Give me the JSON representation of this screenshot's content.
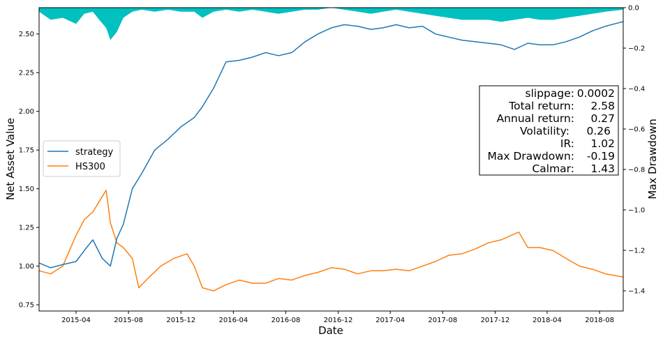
{
  "chart_data": {
    "type": "line",
    "title": "",
    "xlabel": "Date",
    "ylabel": "Net Asset Value",
    "y2label": "Max Drawdown",
    "x_ticks": [
      "2015-04",
      "2015-08",
      "2015-12",
      "2016-04",
      "2016-08",
      "2016-12",
      "2017-04",
      "2017-08",
      "2017-12",
      "2018-04",
      "2018-08"
    ],
    "xlim": [
      "2015-01-05",
      "2018-09-25"
    ],
    "ylim": [
      0.71,
      2.67
    ],
    "y_ticks": [
      "0.75",
      "1.00",
      "1.25",
      "1.50",
      "1.75",
      "2.00",
      "2.25",
      "2.50"
    ],
    "y2lim": [
      -1.5,
      0.0
    ],
    "y2_ticks": [
      "0.0",
      "−0.2",
      "−0.4",
      "−0.6",
      "−0.8",
      "−1.0",
      "−1.2",
      "−1.4"
    ],
    "legend": {
      "position": "center-left",
      "entries": [
        "strategy",
        "HS300"
      ]
    },
    "colors": {
      "strategy": "#1f77b4",
      "HS300": "#ff7f0e",
      "drawdown": "#00c0c0"
    },
    "series": [
      {
        "name": "strategy",
        "x": [
          "2015-01-05",
          "2015-02-01",
          "2015-03-01",
          "2015-04-01",
          "2015-04-20",
          "2015-05-10",
          "2015-06-01",
          "2015-06-20",
          "2015-07-05",
          "2015-07-20",
          "2015-08-10",
          "2015-09-01",
          "2015-10-01",
          "2015-11-01",
          "2015-12-01",
          "2016-01-01",
          "2016-01-20",
          "2016-02-15",
          "2016-03-15",
          "2016-04-15",
          "2016-05-15",
          "2016-06-15",
          "2016-07-15",
          "2016-08-15",
          "2016-09-15",
          "2016-10-15",
          "2016-11-15",
          "2016-12-15",
          "2017-01-15",
          "2017-02-15",
          "2017-03-15",
          "2017-04-15",
          "2017-05-15",
          "2017-06-15",
          "2017-07-15",
          "2017-08-15",
          "2017-09-15",
          "2017-10-15",
          "2017-11-15",
          "2017-12-15",
          "2018-01-15",
          "2018-02-15",
          "2018-03-15",
          "2018-04-15",
          "2018-05-15",
          "2018-06-15",
          "2018-07-15",
          "2018-08-15",
          "2018-09-25"
        ],
        "values": [
          1.02,
          0.99,
          1.01,
          1.03,
          1.1,
          1.17,
          1.05,
          1.0,
          1.18,
          1.27,
          1.5,
          1.6,
          1.75,
          1.82,
          1.9,
          1.96,
          2.03,
          2.15,
          2.32,
          2.33,
          2.35,
          2.38,
          2.36,
          2.38,
          2.45,
          2.5,
          2.54,
          2.56,
          2.55,
          2.53,
          2.54,
          2.56,
          2.54,
          2.55,
          2.5,
          2.48,
          2.46,
          2.45,
          2.44,
          2.43,
          2.4,
          2.44,
          2.43,
          2.43,
          2.45,
          2.48,
          2.52,
          2.55,
          2.58
        ]
      },
      {
        "name": "HS300",
        "x": [
          "2015-01-05",
          "2015-02-01",
          "2015-03-01",
          "2015-04-01",
          "2015-04-20",
          "2015-05-10",
          "2015-06-01",
          "2015-06-10",
          "2015-06-20",
          "2015-07-05",
          "2015-07-20",
          "2015-08-10",
          "2015-08-25",
          "2015-09-15",
          "2015-10-15",
          "2015-11-15",
          "2015-12-15",
          "2016-01-01",
          "2016-01-20",
          "2016-02-15",
          "2016-03-15",
          "2016-04-15",
          "2016-05-15",
          "2016-06-15",
          "2016-07-15",
          "2016-08-15",
          "2016-09-15",
          "2016-10-15",
          "2016-11-15",
          "2016-12-15",
          "2017-01-15",
          "2017-02-15",
          "2017-03-15",
          "2017-04-15",
          "2017-05-15",
          "2017-06-15",
          "2017-07-15",
          "2017-08-15",
          "2017-09-15",
          "2017-10-15",
          "2017-11-15",
          "2017-12-15",
          "2018-01-25",
          "2018-02-15",
          "2018-03-15",
          "2018-04-15",
          "2018-05-15",
          "2018-06-15",
          "2018-07-15",
          "2018-08-15",
          "2018-09-25"
        ],
        "values": [
          0.97,
          0.95,
          1.0,
          1.2,
          1.3,
          1.35,
          1.45,
          1.49,
          1.28,
          1.15,
          1.12,
          1.05,
          0.86,
          0.92,
          1.0,
          1.05,
          1.08,
          1.0,
          0.86,
          0.84,
          0.88,
          0.91,
          0.89,
          0.89,
          0.92,
          0.91,
          0.94,
          0.96,
          0.99,
          0.98,
          0.95,
          0.97,
          0.97,
          0.98,
          0.97,
          1.0,
          1.03,
          1.07,
          1.08,
          1.11,
          1.15,
          1.17,
          1.22,
          1.12,
          1.12,
          1.1,
          1.05,
          1.0,
          0.98,
          0.95,
          0.93
        ]
      },
      {
        "name": "drawdown",
        "x": [
          "2015-01-05",
          "2015-02-01",
          "2015-03-01",
          "2015-04-01",
          "2015-04-20",
          "2015-05-10",
          "2015-05-25",
          "2015-06-10",
          "2015-06-20",
          "2015-07-05",
          "2015-07-20",
          "2015-08-10",
          "2015-09-01",
          "2015-10-01",
          "2015-11-01",
          "2015-12-01",
          "2016-01-01",
          "2016-01-20",
          "2016-02-15",
          "2016-03-15",
          "2016-04-15",
          "2016-05-15",
          "2016-06-15",
          "2016-07-15",
          "2016-08-15",
          "2016-09-15",
          "2016-10-15",
          "2016-11-15",
          "2016-12-15",
          "2017-01-15",
          "2017-02-15",
          "2017-03-15",
          "2017-04-15",
          "2017-05-15",
          "2017-06-15",
          "2017-07-15",
          "2017-08-15",
          "2017-09-15",
          "2017-10-15",
          "2017-11-15",
          "2017-12-15",
          "2018-01-15",
          "2018-02-15",
          "2018-03-15",
          "2018-04-15",
          "2018-05-15",
          "2018-06-15",
          "2018-07-15",
          "2018-08-15",
          "2018-09-25"
        ],
        "values": [
          -0.02,
          -0.06,
          -0.05,
          -0.08,
          -0.03,
          -0.02,
          -0.06,
          -0.1,
          -0.16,
          -0.12,
          -0.05,
          -0.02,
          -0.01,
          -0.02,
          -0.01,
          -0.02,
          -0.02,
          -0.05,
          -0.02,
          -0.01,
          -0.02,
          -0.01,
          -0.02,
          -0.03,
          -0.02,
          -0.01,
          -0.01,
          0.0,
          -0.01,
          -0.02,
          -0.03,
          -0.02,
          -0.01,
          -0.02,
          -0.03,
          -0.04,
          -0.05,
          -0.06,
          -0.06,
          -0.06,
          -0.07,
          -0.06,
          -0.05,
          -0.06,
          -0.06,
          -0.05,
          -0.04,
          -0.03,
          -0.02,
          -0.01
        ]
      }
    ]
  },
  "stats": [
    {
      "label": "slippage:",
      "value": "0.0002"
    },
    {
      "label": "Total return:",
      "value": "2.58"
    },
    {
      "label": "Annual return:",
      "value": "0.27"
    },
    {
      "label": "Volatility:",
      "value": "0.26"
    },
    {
      "label": "IR:",
      "value": "1.02"
    },
    {
      "label": "Max Drawdown:",
      "value": "-0.19"
    },
    {
      "label": "Calmar:",
      "value": "1.43"
    }
  ]
}
